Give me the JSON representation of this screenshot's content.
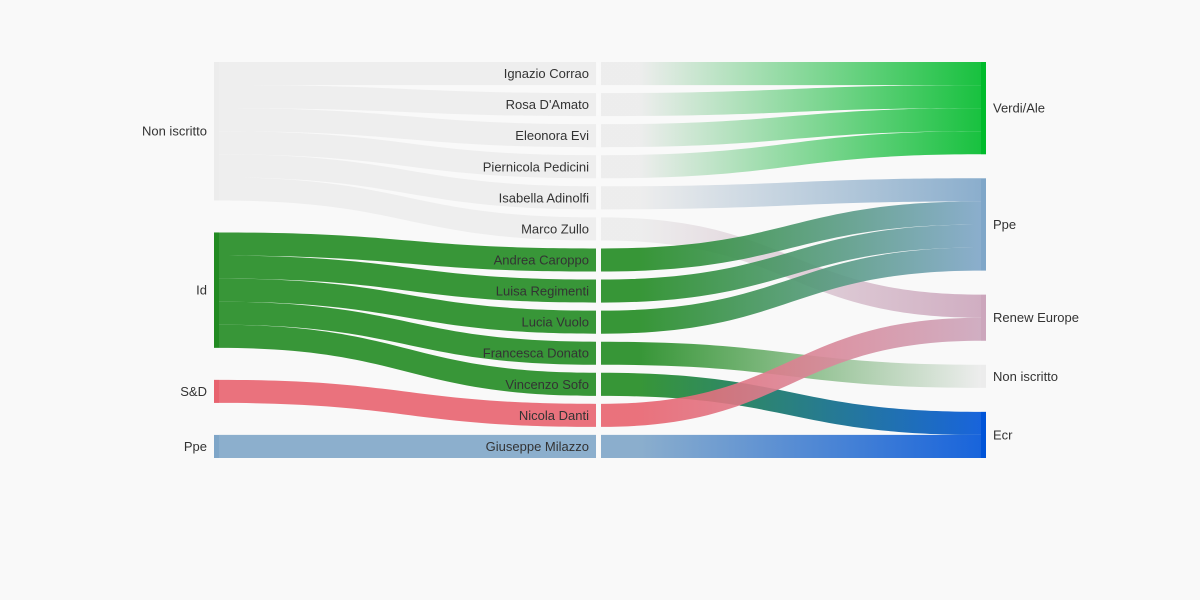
{
  "chart_data": {
    "type": "sankey",
    "columns": [
      [
        "Non iscritto",
        "Id",
        "S&D",
        "Ppe"
      ],
      [
        "Ignazio Corrao",
        "Rosa D'Amato",
        "Eleonora Evi",
        "Piernicola Pedicini",
        "Isabella Adinolfi",
        "Marco Zullo",
        "Andrea Caroppo",
        "Luisa Regimenti",
        "Lucia Vuolo",
        "Francesca Donato",
        "Vincenzo Sofo",
        "Nicola Danti",
        "Giuseppe Milazzo"
      ],
      [
        "Verdi/Ale",
        "Ppe",
        "Renew Europe",
        "Non iscritto",
        "Ecr"
      ]
    ],
    "flows": [
      {
        "from": "Non iscritto",
        "to": "Ignazio Corrao",
        "then": "Verdi/Ale"
      },
      {
        "from": "Non iscritto",
        "to": "Rosa D'Amato",
        "then": "Verdi/Ale"
      },
      {
        "from": "Non iscritto",
        "to": "Eleonora Evi",
        "then": "Verdi/Ale"
      },
      {
        "from": "Non iscritto",
        "to": "Piernicola Pedicini",
        "then": "Verdi/Ale"
      },
      {
        "from": "Non iscritto",
        "to": "Isabella Adinolfi",
        "then": "Ppe"
      },
      {
        "from": "Non iscritto",
        "to": "Marco Zullo",
        "then": "Renew Europe"
      },
      {
        "from": "Id",
        "to": "Andrea Caroppo",
        "then": "Ppe"
      },
      {
        "from": "Id",
        "to": "Luisa Regimenti",
        "then": "Ppe"
      },
      {
        "from": "Id",
        "to": "Lucia Vuolo",
        "then": "Ppe"
      },
      {
        "from": "Id",
        "to": "Francesca Donato",
        "then": "Non iscritto"
      },
      {
        "from": "Id",
        "to": "Vincenzo Sofo",
        "then": "Ecr"
      },
      {
        "from": "S&D",
        "to": "Nicola Danti",
        "then": "Renew Europe"
      },
      {
        "from": "Ppe",
        "to": "Giuseppe Milazzo",
        "then": "Ecr"
      }
    ],
    "value_per_flow": 1,
    "colors": {
      "Non iscritto": "#ececec",
      "Id": "#228b22",
      "S&D": "#e8636f",
      "Ppe": "#7fa6c8",
      "Verdi/Ale": "#00bb2b",
      "Renew Europe": "#cca6bc",
      "Ecr": "#0054d8"
    }
  }
}
